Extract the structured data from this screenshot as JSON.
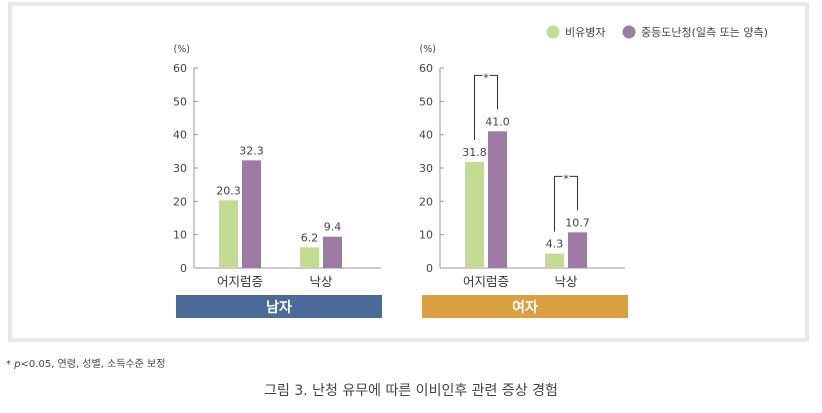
{
  "chart_data": {
    "type": "bar",
    "unit": "(%)",
    "ylim": [
      0,
      60
    ],
    "yticks": [
      "0",
      "10",
      "20",
      "30",
      "40",
      "50",
      "60"
    ],
    "series": [
      {
        "name": "비유병자",
        "color": "#c2dc91"
      },
      {
        "name": "중등도난청(일측 또는 양측)",
        "color": "#9e7ba2"
      }
    ],
    "legend_position": "top-right",
    "panels": [
      {
        "label": "남자",
        "label_color": "#4a6b98",
        "categories": [
          {
            "name": "어지럼증",
            "values": [
              20.3,
              32.3
            ],
            "labels": [
              "20.3",
              "32.3"
            ],
            "significant": false
          },
          {
            "name": "낙상",
            "values": [
              6.2,
              9.4
            ],
            "labels": [
              "6.2",
              "9.4"
            ],
            "significant": false
          }
        ]
      },
      {
        "label": "여자",
        "label_color": "#dba03f",
        "categories": [
          {
            "name": "어지럼증",
            "values": [
              31.8,
              41.0
            ],
            "labels": [
              "31.8",
              "41.0"
            ],
            "significant": true
          },
          {
            "name": "낙상",
            "values": [
              4.3,
              10.7
            ],
            "labels": [
              "4.3",
              "10.7"
            ],
            "significant": true
          }
        ]
      }
    ],
    "significance_marker": "*"
  },
  "footnote": {
    "star": "*",
    "p": "p",
    "text": "<0.05, 연령, 성별, 소득수준 보정"
  },
  "caption": "그림 3. 난청 유무에 따른 이비인후 관련 증상 경험"
}
